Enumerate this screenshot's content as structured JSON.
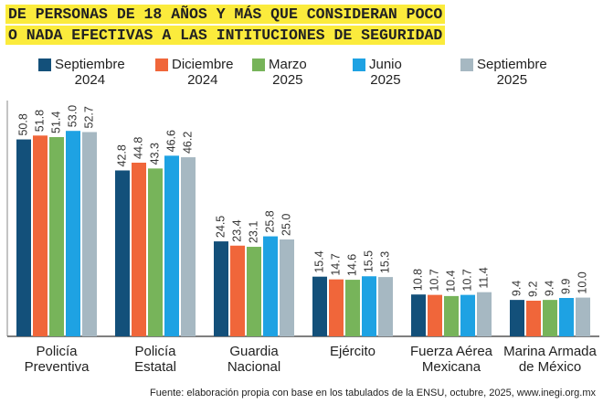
{
  "chart_data": {
    "type": "bar",
    "title": "DE PERSONAS DE 18 AÑOS Y MÁS QUE CONSIDERAN POCO\nO NADA EFECTIVAS A LAS INTITUCIONES DE SEGURIDAD",
    "categories": [
      "Policía\nPreventiva",
      "Policía\nEstatal",
      "Guardia\nNacional",
      "Ejército",
      "Fuerza Aérea\nMexicana",
      "Marina Armada\nde México"
    ],
    "series": [
      {
        "name": "Septiembre\n2024",
        "color": "#13507a",
        "values": [
          50.8,
          42.8,
          24.5,
          15.4,
          10.8,
          9.4
        ],
        "value_labels": [
          "50.8",
          "42.8",
          "24.5",
          "15.4",
          "10.8",
          "9.4"
        ]
      },
      {
        "name": "Diciembre\n2024",
        "color": "#f0663a",
        "values": [
          51.8,
          44.8,
          23.4,
          14.7,
          10.7,
          9.2
        ],
        "value_labels": [
          "51.8",
          "44.8",
          "23.4",
          "14.7",
          "10.7",
          "9.2"
        ]
      },
      {
        "name": "Marzo\n2025",
        "color": "#77b45a",
        "values": [
          51.4,
          43.3,
          23.1,
          14.6,
          10.4,
          9.4
        ],
        "value_labels": [
          "51.4",
          "43.3",
          "23.1",
          "14.6",
          "10.4",
          "9.4"
        ]
      },
      {
        "name": "Junio\n2025",
        "color": "#1ea2e3",
        "values": [
          53.0,
          46.6,
          25.8,
          15.5,
          10.7,
          9.9
        ],
        "value_labels": [
          "53.0",
          "46.6",
          "25.8",
          "15.5",
          "10.7",
          "9.9"
        ]
      },
      {
        "name": "Septiembre\n2025",
        "color": "#a6b8c2",
        "values": [
          52.7,
          46.2,
          25.0,
          15.3,
          11.4,
          10.0
        ],
        "value_labels": [
          "52.7",
          "46.2",
          "25.0",
          "15.3",
          "11.4",
          "10.0"
        ]
      }
    ],
    "ylim": [
      0,
      58
    ],
    "source": "Fuente: elaboración propia con base en los tabulados de la ENSU, octubre, 2025, www.inegi.org.mx"
  }
}
